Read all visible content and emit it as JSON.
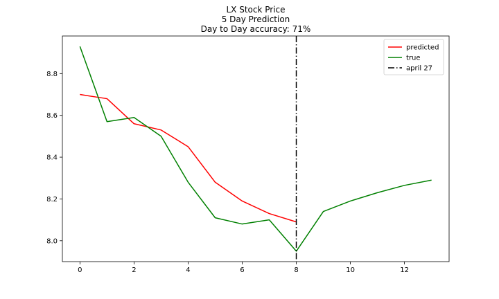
{
  "chart_data": {
    "type": "line",
    "title_lines": [
      "LX Stock Price",
      "5 Day Prediction",
      "Day to Day accuracy: 71%"
    ],
    "xlabel": "",
    "ylabel": "",
    "xlim": [
      -0.65,
      13.65
    ],
    "ylim": [
      7.9,
      8.98
    ],
    "x_ticks": [
      0,
      2,
      4,
      6,
      8,
      10,
      12
    ],
    "y_ticks": [
      8.0,
      8.2,
      8.4,
      8.6,
      8.8
    ],
    "x_tick_labels": [
      "0",
      "2",
      "4",
      "6",
      "8",
      "10",
      "12"
    ],
    "y_tick_labels": [
      "8.0",
      "8.2",
      "8.4",
      "8.6",
      "8.8"
    ],
    "grid": false,
    "legend_position": "top-right",
    "series": [
      {
        "name": "predicted",
        "color": "#ff0000",
        "style": "solid",
        "x": [
          0,
          1,
          2,
          3,
          4,
          5,
          6,
          7,
          8
        ],
        "y": [
          8.7,
          8.68,
          8.56,
          8.53,
          8.45,
          8.28,
          8.19,
          8.13,
          8.09
        ]
      },
      {
        "name": "true",
        "color": "#008000",
        "style": "solid",
        "x": [
          0,
          1,
          2,
          3,
          4,
          5,
          6,
          7,
          8,
          9,
          10,
          11,
          12,
          13
        ],
        "y": [
          8.93,
          8.57,
          8.59,
          8.5,
          8.28,
          8.11,
          8.08,
          8.1,
          7.95,
          8.14,
          8.19,
          8.23,
          8.265,
          8.29
        ]
      }
    ],
    "vlines": [
      {
        "name": "april 27",
        "x": 8,
        "color": "#000000",
        "style": "dashdot"
      }
    ]
  }
}
